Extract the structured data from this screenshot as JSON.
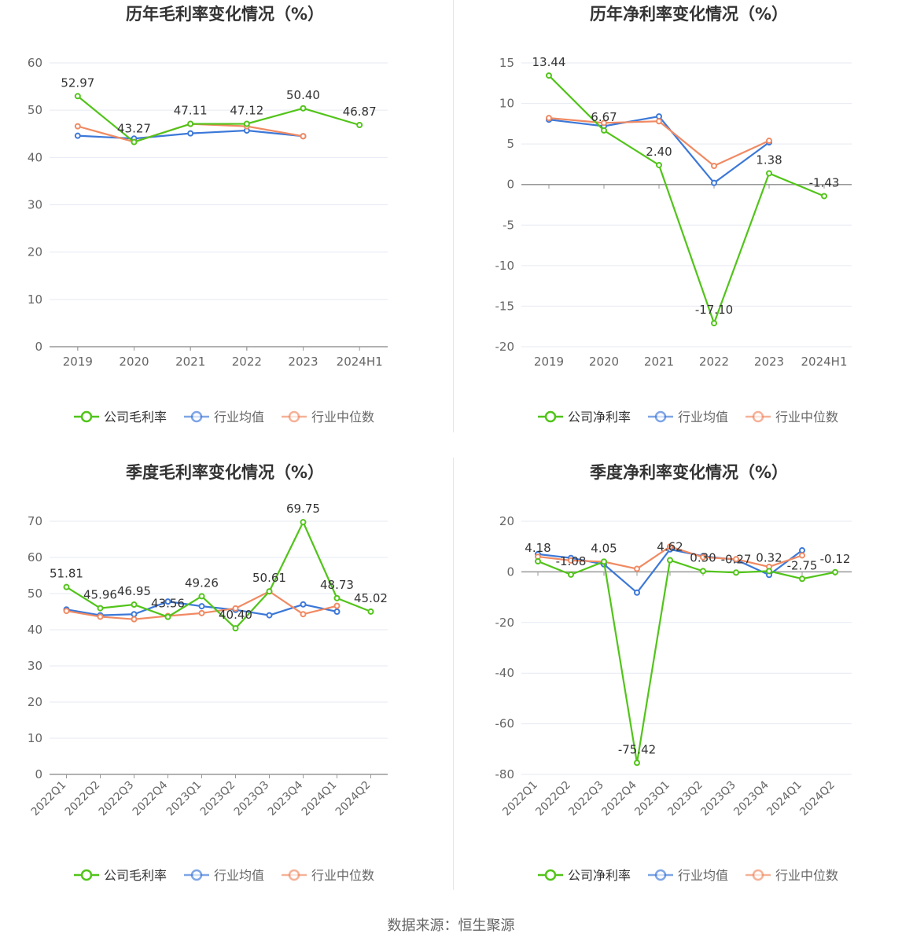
{
  "colors": {
    "company": "#52c41a",
    "industry_avg": "#3c78d8",
    "industry_median": "#f08a63",
    "grid": "#e6e9f2",
    "axis": "#999999",
    "text": "#333333"
  },
  "legend": {
    "company_gross": "公司毛利率",
    "company_net": "公司净利率",
    "industry_avg": "行业均值",
    "industry_median": "行业中位数"
  },
  "footer": {
    "source": "数据来源：恒生聚源"
  },
  "chart_data": [
    {
      "id": "annual-gross",
      "type": "line",
      "title": "历年毛利率变化情况（%）",
      "categories": [
        "2019",
        "2020",
        "2021",
        "2022",
        "2023",
        "2024H1"
      ],
      "ylim": [
        0,
        60
      ],
      "yticks": [
        0,
        10,
        20,
        30,
        40,
        50,
        60
      ],
      "grid": true,
      "legend_position": "bottom-center",
      "series": [
        {
          "name": "公司毛利率",
          "color": "#52c41a",
          "labeled": true,
          "values": [
            52.97,
            43.27,
            47.11,
            47.12,
            50.4,
            46.87
          ],
          "labels": [
            "52.97",
            "43.27",
            "47.11",
            "47.12",
            "50.40",
            "46.87"
          ]
        },
        {
          "name": "行业均值",
          "color": "#3c78d8",
          "values": [
            44.6,
            44.0,
            45.1,
            45.7,
            44.5,
            null
          ]
        },
        {
          "name": "行业中位数",
          "color": "#f08a63",
          "values": [
            46.6,
            43.3,
            47.1,
            46.6,
            44.5,
            null
          ]
        }
      ]
    },
    {
      "id": "annual-net",
      "type": "line",
      "title": "历年净利率变化情况（%）",
      "categories": [
        "2019",
        "2020",
        "2021",
        "2022",
        "2023",
        "2024H1"
      ],
      "ylim": [
        -20,
        15
      ],
      "yticks": [
        -20,
        -15,
        -10,
        -5,
        0,
        5,
        10,
        15
      ],
      "grid": true,
      "legend_position": "bottom-center",
      "series": [
        {
          "name": "公司净利率",
          "color": "#52c41a",
          "labeled": true,
          "values": [
            13.44,
            6.67,
            2.4,
            -17.1,
            1.38,
            -1.43
          ],
          "labels": [
            "13.44",
            "6.67",
            "2.40",
            "-17.10",
            "1.38",
            "-1.43"
          ]
        },
        {
          "name": "行业均值",
          "color": "#3c78d8",
          "values": [
            8.0,
            7.2,
            8.4,
            0.2,
            5.2,
            null
          ]
        },
        {
          "name": "行业中位数",
          "color": "#f08a63",
          "values": [
            8.2,
            7.6,
            7.8,
            2.3,
            5.4,
            null
          ]
        }
      ]
    },
    {
      "id": "quarterly-gross",
      "type": "line",
      "title": "季度毛利率变化情况（%）",
      "categories": [
        "2022Q1",
        "2022Q2",
        "2022Q3",
        "2022Q4",
        "2023Q1",
        "2023Q2",
        "2023Q3",
        "2023Q4",
        "2024Q1",
        "2024Q2"
      ],
      "ylim": [
        0,
        70
      ],
      "yticks": [
        0,
        10,
        20,
        30,
        40,
        50,
        60,
        70
      ],
      "grid": true,
      "legend_position": "bottom-center",
      "series": [
        {
          "name": "公司毛利率",
          "color": "#52c41a",
          "labeled": true,
          "values": [
            51.81,
            45.96,
            46.95,
            43.56,
            49.26,
            40.4,
            50.61,
            69.75,
            48.73,
            45.02
          ],
          "labels": [
            "51.81",
            "45.96",
            "46.95",
            "43.56",
            "49.26",
            "40.40",
            "50.61",
            "69.75",
            "48.73",
            "45.02"
          ]
        },
        {
          "name": "行业均值",
          "color": "#3c78d8",
          "values": [
            45.6,
            44.0,
            44.3,
            47.8,
            46.5,
            45.5,
            44.0,
            47.0,
            45.0,
            null
          ]
        },
        {
          "name": "行业中位数",
          "color": "#f08a63",
          "values": [
            45.2,
            43.6,
            42.9,
            43.8,
            44.6,
            45.9,
            50.6,
            44.3,
            46.6,
            null
          ]
        }
      ]
    },
    {
      "id": "quarterly-net",
      "type": "line",
      "title": "季度净利率变化情况（%）",
      "categories": [
        "2022Q1",
        "2022Q2",
        "2022Q3",
        "2022Q4",
        "2023Q1",
        "2023Q2",
        "2023Q3",
        "2023Q4",
        "2024Q1",
        "2024Q2"
      ],
      "ylim": [
        -80,
        20
      ],
      "yticks": [
        -80,
        -60,
        -40,
        -20,
        0,
        20
      ],
      "grid": true,
      "legend_position": "bottom-center",
      "series": [
        {
          "name": "公司净利率",
          "color": "#52c41a",
          "labeled": true,
          "values": [
            4.18,
            -1.08,
            4.05,
            -75.42,
            4.62,
            0.3,
            -0.27,
            0.32,
            -2.75,
            -0.12
          ],
          "labels": [
            "4.18",
            "-1.08",
            "4.05",
            "-75.42",
            "4.62",
            "0.30",
            "-0.27",
            "0.32",
            "-2.75",
            "-0.12"
          ]
        },
        {
          "name": "行业均值",
          "color": "#3c78d8",
          "values": [
            7.0,
            5.5,
            3.0,
            -8.2,
            8.9,
            6.2,
            4.8,
            -1.2,
            8.5,
            null
          ]
        },
        {
          "name": "行业中位数",
          "color": "#f08a63",
          "values": [
            6.0,
            4.5,
            4.0,
            1.2,
            10.0,
            5.8,
            5.0,
            2.0,
            6.5,
            null
          ]
        }
      ]
    }
  ]
}
